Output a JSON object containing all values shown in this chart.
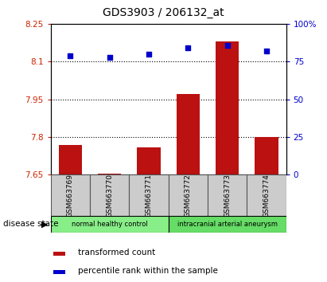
{
  "title": "GDS3903 / 206132_at",
  "samples": [
    "GSM663769",
    "GSM663770",
    "GSM663771",
    "GSM663772",
    "GSM663773",
    "GSM663774"
  ],
  "transformed_count": [
    7.77,
    7.656,
    7.76,
    7.97,
    8.18,
    7.8
  ],
  "percentile_rank": [
    79,
    78,
    80,
    84,
    86,
    82
  ],
  "ylim_left": [
    7.65,
    8.25
  ],
  "ylim_right": [
    0,
    100
  ],
  "yticks_left": [
    7.65,
    7.8,
    7.95,
    8.1,
    8.25
  ],
  "ytick_labels_left": [
    "7.65",
    "7.8",
    "7.95",
    "8.1",
    "8.25"
  ],
  "yticks_right": [
    0,
    25,
    50,
    75,
    100
  ],
  "ytick_labels_right": [
    "0",
    "25",
    "50",
    "75",
    "100%"
  ],
  "hlines": [
    7.8,
    7.95,
    8.1
  ],
  "bar_color": "#bb1111",
  "scatter_color": "#0000cc",
  "bar_width": 0.6,
  "groups": [
    {
      "label": "normal healthy control",
      "indices": [
        0,
        1,
        2
      ],
      "color": "#88ee88"
    },
    {
      "label": "intracranial arterial aneurysm",
      "indices": [
        3,
        4,
        5
      ],
      "color": "#66dd66"
    }
  ],
  "disease_state_label": "disease state",
  "legend_bar_label": "transformed count",
  "legend_scatter_label": "percentile rank within the sample",
  "title_fontsize": 10,
  "axis_label_color_left": "#cc2200",
  "axis_label_color_right": "#0000cc",
  "sample_bg_color": "#cccccc",
  "sample_box_edgecolor": "#555555"
}
